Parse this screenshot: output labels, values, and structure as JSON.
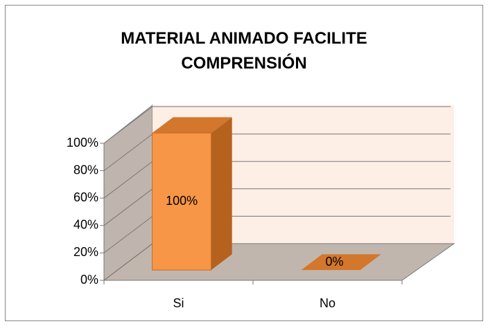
{
  "chart_data": {
    "type": "bar3d",
    "title": "MATERIAL ANIMADO FACILITE COMPRENSIÓN",
    "categories": [
      "Si",
      "No"
    ],
    "values": [
      100,
      0
    ],
    "value_labels": [
      "100%",
      "0%"
    ],
    "color": "#f79646",
    "ylim": [
      0,
      100
    ],
    "yticks": [
      {
        "value": 0,
        "label": "0%"
      },
      {
        "value": 20,
        "label": "20%"
      },
      {
        "value": 40,
        "label": "40%"
      },
      {
        "value": 60,
        "label": "60%"
      },
      {
        "value": 80,
        "label": "80%"
      },
      {
        "value": 100,
        "label": "100%"
      }
    ],
    "grid": true
  }
}
